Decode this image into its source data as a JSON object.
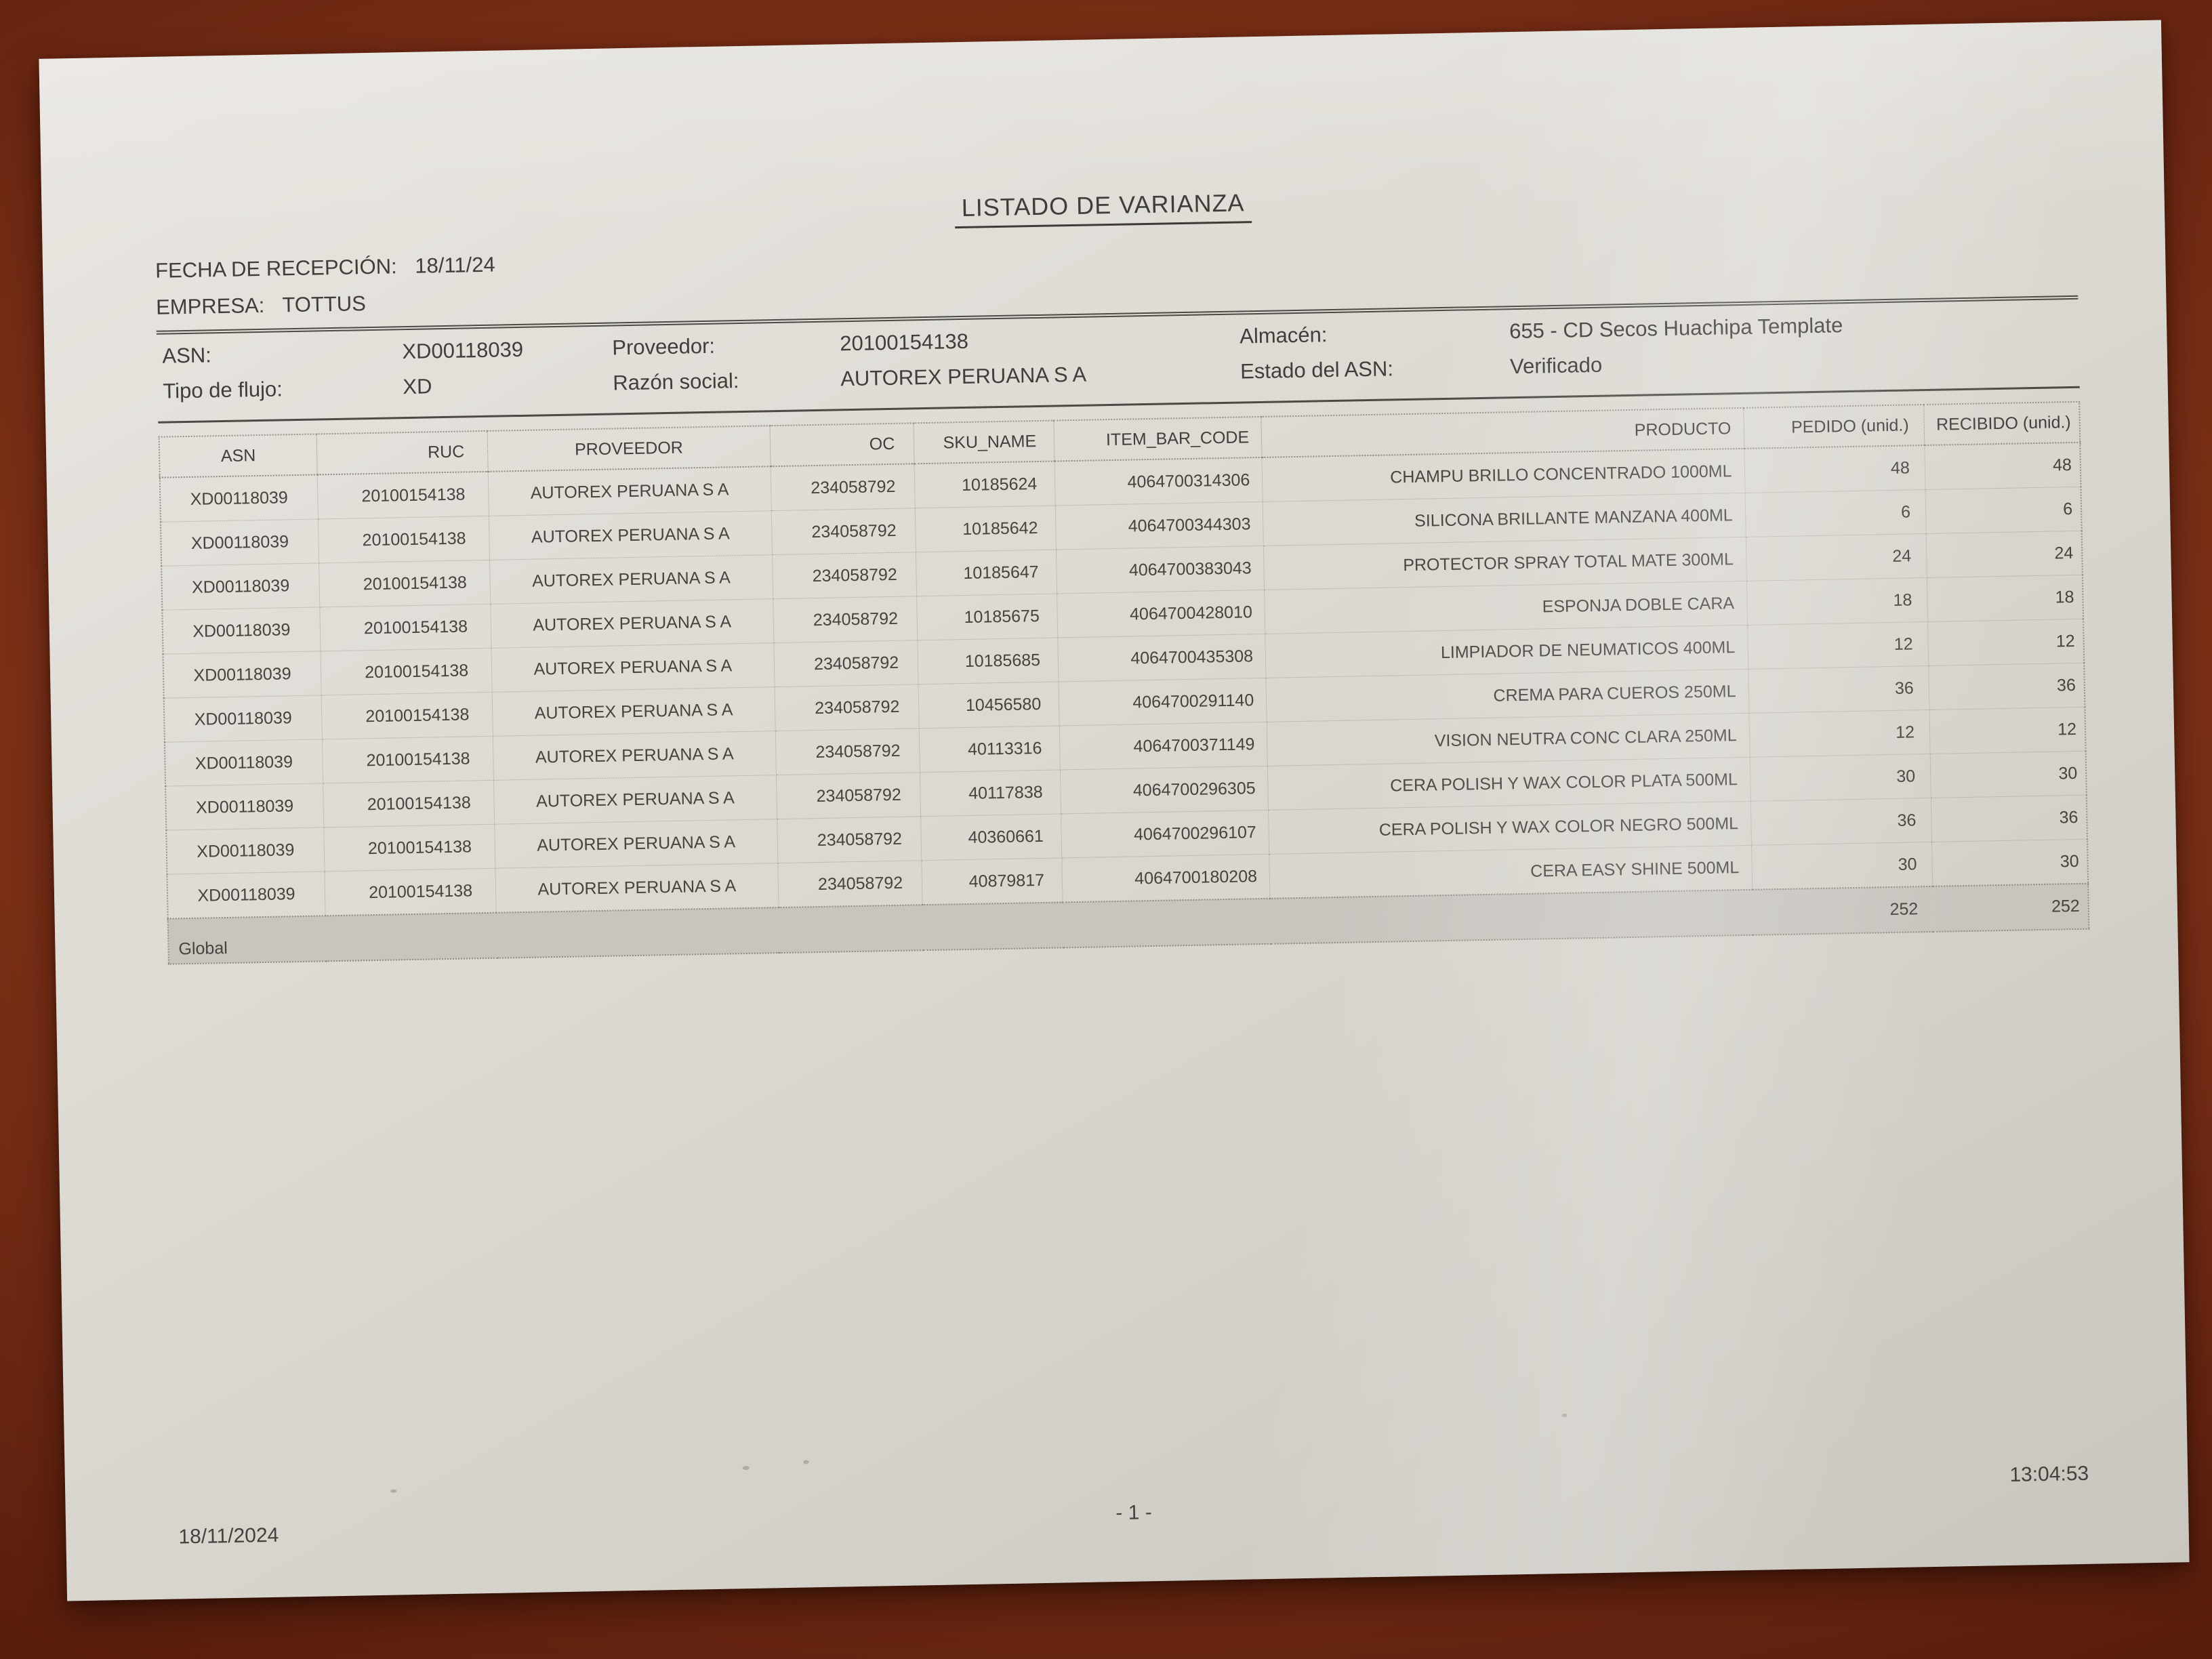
{
  "doc": {
    "title": "LISTADO DE VARIANZA",
    "reception": {
      "label": "FECHA DE RECEPCIÓN:",
      "value": "18/11/24"
    },
    "company": {
      "label": "EMPRESA:",
      "value": "TOTTUS"
    },
    "info": {
      "asn_label": "ASN:",
      "asn_value": "XD00118039",
      "proveedor_label": "Proveedor:",
      "proveedor_value": "20100154138",
      "almacen_label": "Almacén:",
      "almacen_value": "655 - CD Secos Huachipa Template",
      "tipo_flujo_label": "Tipo de flujo:",
      "tipo_flujo_value": "XD",
      "razon_social_label": "Razón social:",
      "razon_social_value": "AUTOREX PERUANA S A",
      "estado_asn_label": "Estado del ASN:",
      "estado_asn_value": "Verificado"
    }
  },
  "table": {
    "columns": [
      "ASN",
      "RUC",
      "PROVEEDOR",
      "OC",
      "SKU_NAME",
      "ITEM_BAR_CODE",
      "PRODUCTO",
      "PEDIDO (unid.)",
      "RECIBIDO (unid.)"
    ],
    "rows": [
      [
        "XD00118039",
        "20100154138",
        "AUTOREX PERUANA S A",
        "234058792",
        "10185624",
        "4064700314306",
        "CHAMPU BRILLO CONCENTRADO 1000ML",
        "48",
        "48"
      ],
      [
        "XD00118039",
        "20100154138",
        "AUTOREX PERUANA S A",
        "234058792",
        "10185642",
        "4064700344303",
        "SILICONA BRILLANTE MANZANA 400ML",
        "6",
        "6"
      ],
      [
        "XD00118039",
        "20100154138",
        "AUTOREX PERUANA S A",
        "234058792",
        "10185647",
        "4064700383043",
        "PROTECTOR SPRAY TOTAL MATE 300ML",
        "24",
        "24"
      ],
      [
        "XD00118039",
        "20100154138",
        "AUTOREX PERUANA S A",
        "234058792",
        "10185675",
        "4064700428010",
        "ESPONJA DOBLE CARA",
        "18",
        "18"
      ],
      [
        "XD00118039",
        "20100154138",
        "AUTOREX PERUANA S A",
        "234058792",
        "10185685",
        "4064700435308",
        "LIMPIADOR DE NEUMATICOS 400ML",
        "12",
        "12"
      ],
      [
        "XD00118039",
        "20100154138",
        "AUTOREX PERUANA S A",
        "234058792",
        "10456580",
        "4064700291140",
        "CREMA PARA CUEROS 250ML",
        "36",
        "36"
      ],
      [
        "XD00118039",
        "20100154138",
        "AUTOREX PERUANA S A",
        "234058792",
        "40113316",
        "4064700371149",
        "VISION NEUTRA CONC CLARA 250ML",
        "12",
        "12"
      ],
      [
        "XD00118039",
        "20100154138",
        "AUTOREX PERUANA S A",
        "234058792",
        "40117838",
        "4064700296305",
        "CERA POLISH Y WAX COLOR PLATA 500ML",
        "30",
        "30"
      ],
      [
        "XD00118039",
        "20100154138",
        "AUTOREX PERUANA S A",
        "234058792",
        "40360661",
        "4064700296107",
        "CERA POLISH Y WAX COLOR NEGRO 500ML",
        "36",
        "36"
      ],
      [
        "XD00118039",
        "20100154138",
        "AUTOREX PERUANA S A",
        "234058792",
        "40879817",
        "4064700180208",
        "CERA EASY SHINE 500ML",
        "30",
        "30"
      ]
    ],
    "total": {
      "label": "Global",
      "pedido": "252",
      "recibido": "252"
    }
  },
  "footer": {
    "date": "18/11/2024",
    "page": "- 1 -",
    "time": "13:04:53"
  },
  "colors": {
    "wood_background": "#7a2f16",
    "paper": "#dcd9d3",
    "total_row_background": "#c8c5bf",
    "ink": "#413f3b"
  }
}
